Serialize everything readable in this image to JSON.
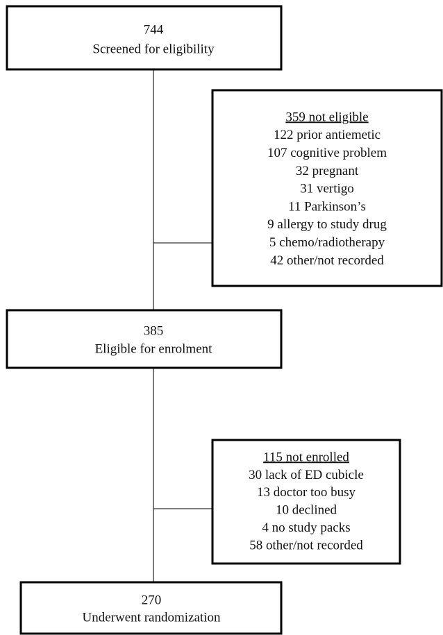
{
  "nodes": [
    {
      "count": "744",
      "label": "Screened for eligibility"
    },
    {
      "heading": "359 not eligible",
      "items": [
        "122 prior antiemetic",
        "107 cognitive problem",
        "32 pregnant",
        "31 vertigo",
        "11 Parkinson’s",
        "9 allergy to study drug",
        "5 chemo/radiotherapy",
        "42 other/not recorded"
      ]
    },
    {
      "count": "385",
      "label": "Eligible for enrolment"
    },
    {
      "heading": "115 not enrolled",
      "items": [
        "30 lack of ED cubicle",
        "13 doctor too busy",
        "10 declined",
        "4 no study packs",
        "58 other/not recorded"
      ]
    },
    {
      "count": "270",
      "label": "Underwent randomization"
    }
  ]
}
